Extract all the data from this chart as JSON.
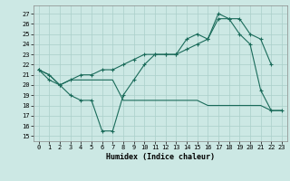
{
  "xlabel": "Humidex (Indice chaleur)",
  "bg_color": "#cce8e4",
  "grid_color": "#aacfca",
  "line_color": "#1a6b5a",
  "xlim": [
    -0.5,
    23.5
  ],
  "ylim": [
    14.5,
    27.8
  ],
  "yticks": [
    15,
    16,
    17,
    18,
    19,
    20,
    21,
    22,
    23,
    24,
    25,
    26,
    27
  ],
  "xticks": [
    0,
    1,
    2,
    3,
    4,
    5,
    6,
    7,
    8,
    9,
    10,
    11,
    12,
    13,
    14,
    15,
    16,
    17,
    18,
    19,
    20,
    21,
    22,
    23
  ],
  "series1_x": [
    0,
    1,
    2,
    3,
    4,
    5,
    6,
    7,
    8,
    9,
    10,
    11,
    12,
    13,
    14,
    15,
    16,
    17,
    18,
    19,
    20,
    21,
    22,
    23
  ],
  "series1_y": [
    21.5,
    21.0,
    20.0,
    19.0,
    18.5,
    18.5,
    15.5,
    15.5,
    19.0,
    20.5,
    22.0,
    23.0,
    23.0,
    23.0,
    24.5,
    25.0,
    24.5,
    27.0,
    26.5,
    25.0,
    24.0,
    19.5,
    17.5,
    17.5
  ],
  "series2_x": [
    0,
    1,
    2,
    3,
    4,
    5,
    6,
    7,
    8,
    9,
    10,
    11,
    12,
    13,
    14,
    15,
    16,
    17,
    18,
    19,
    20,
    21,
    22,
    23
  ],
  "series2_y": [
    21.5,
    21.0,
    20.0,
    20.5,
    20.5,
    20.5,
    20.5,
    20.5,
    18.5,
    18.5,
    18.5,
    18.5,
    18.5,
    18.5,
    18.5,
    18.5,
    18.0,
    18.0,
    18.0,
    18.0,
    18.0,
    18.0,
    17.5,
    17.5
  ],
  "series3_x": [
    0,
    1,
    2,
    3,
    4,
    5,
    6,
    7,
    8,
    9,
    10,
    11,
    12,
    13,
    14,
    15,
    16,
    17,
    18,
    19,
    20,
    21,
    22
  ],
  "series3_y": [
    21.5,
    20.5,
    20.0,
    20.5,
    21.0,
    21.0,
    21.5,
    21.5,
    22.0,
    22.5,
    23.0,
    23.0,
    23.0,
    23.0,
    23.5,
    24.0,
    24.5,
    26.5,
    26.5,
    26.5,
    25.0,
    24.5,
    22.0
  ],
  "ylabel_size": 5,
  "xlabel_size": 6,
  "tick_size": 5
}
